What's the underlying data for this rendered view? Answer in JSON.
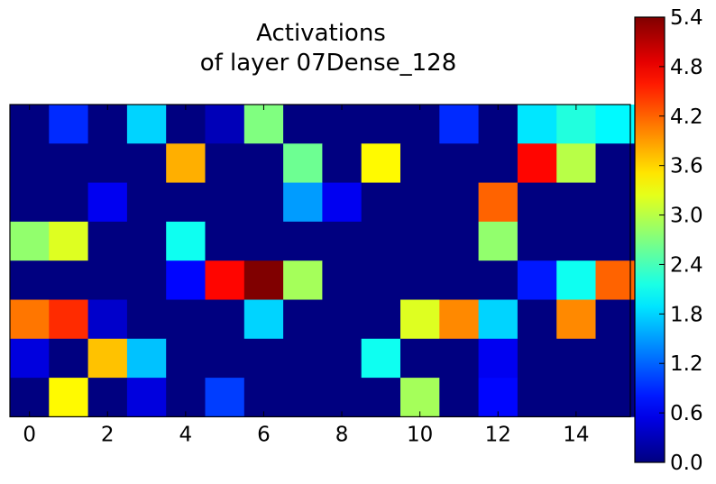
{
  "chart_data": {
    "type": "heatmap",
    "title": [
      "Activations",
      "of layer 07Dense_128"
    ],
    "xlabel": "",
    "ylabel": "",
    "x_ticks": [
      "0",
      "2",
      "4",
      "6",
      "8",
      "10",
      "12",
      "14"
    ],
    "x_tick_values": [
      0,
      2,
      4,
      6,
      8,
      10,
      12,
      14
    ],
    "xlim": [
      -0.5,
      15.5
    ],
    "colorbar": {
      "colormap": "jet",
      "range": [
        0.0,
        5.4
      ],
      "tick_labels": [
        "0.0",
        "0.6",
        "1.2",
        "1.8",
        "2.4",
        "3.0",
        "3.6",
        "4.2",
        "4.8",
        "5.4"
      ],
      "tick_values": [
        0.0,
        0.6,
        1.2,
        1.8,
        2.4,
        3.0,
        3.6,
        4.2,
        4.8,
        5.4
      ]
    },
    "grid": false,
    "matrix": [
      [
        0,
        0.9,
        0,
        1.8,
        0,
        0.3,
        2.7,
        0,
        0,
        0,
        0,
        0.9,
        0,
        1.9,
        2.2,
        2.0
      ],
      [
        0,
        0,
        0,
        0,
        3.8,
        0,
        0,
        2.6,
        0,
        3.4,
        0,
        0,
        0,
        4.7,
        3.0,
        0
      ],
      [
        0,
        0,
        0.6,
        0,
        0,
        0,
        0,
        1.5,
        0.6,
        0,
        0,
        0,
        4.2,
        0,
        0,
        0
      ],
      [
        2.8,
        3.2,
        0,
        0,
        2.1,
        0,
        0,
        0,
        0,
        0,
        0,
        0,
        2.8,
        0,
        0,
        0
      ],
      [
        0,
        0,
        0,
        0,
        0.7,
        4.7,
        5.4,
        2.9,
        0,
        0,
        0,
        0,
        0,
        0.8,
        2.1,
        4.2
      ],
      [
        4.1,
        4.5,
        0.4,
        0,
        0,
        0,
        1.8,
        0,
        0,
        0,
        3.2,
        4.0,
        1.8,
        0,
        4.0,
        0
      ],
      [
        0.5,
        0,
        3.7,
        1.7,
        0,
        0,
        0,
        0,
        0,
        2.1,
        0,
        0,
        0.6,
        0,
        0,
        0
      ],
      [
        0,
        3.4,
        0,
        0.5,
        0,
        1.0,
        0,
        0,
        0,
        0,
        2.9,
        0,
        0.7,
        0,
        0,
        0
      ]
    ]
  }
}
